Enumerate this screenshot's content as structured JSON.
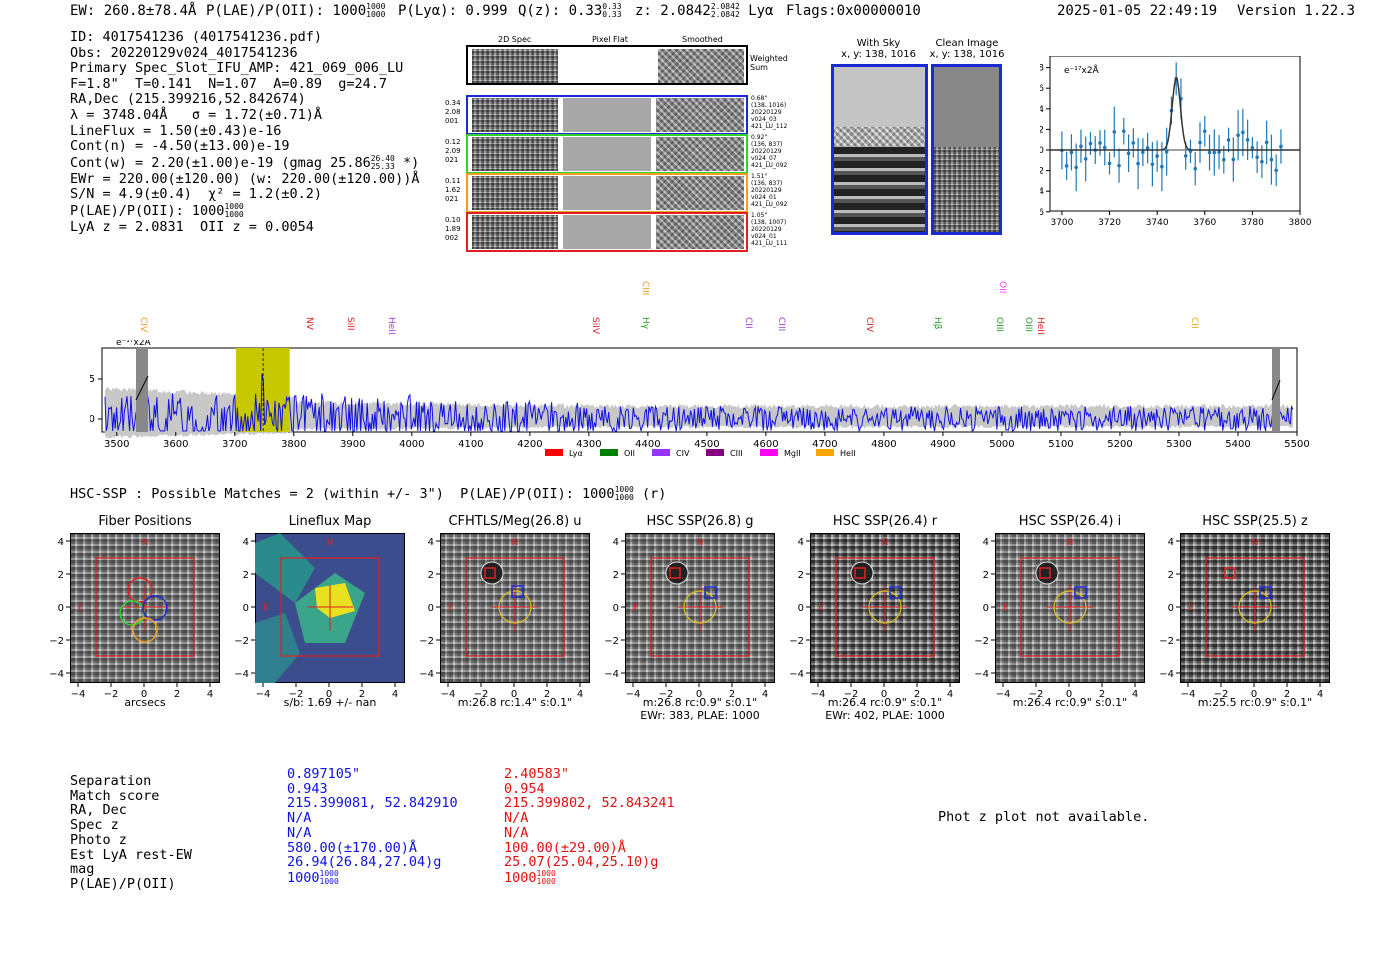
{
  "header": {
    "ew": "EW: 260.8±78.4Å",
    "plae_label": "P(LAE)/P(OII): 1000",
    "plae_num": "1000",
    "plae_den": "1000",
    "plya": "P(Lyα): 0.999",
    "qz_label": "Q(z): 0.33",
    "qz_num": "0.33",
    "qz_den": "0.33",
    "z_label": "z: 2.0842",
    "z_num": "2.0842",
    "z_den": "2.0842",
    "line": "Lyα",
    "flags": "Flags:0x00000010",
    "timestamp": "2025-01-05 22:49:19",
    "version": "Version 1.22.3"
  },
  "info": {
    "l1": "ID: 4017541236 (4017541236.pdf)",
    "l2": "Obs: 20220129v024_4017541236",
    "l3": "Primary Spec_Slot_IFU_AMP: 421_069_006_LU",
    "l4": "F=1.8\"  T=0.141  N=1.07  A=0.89  g=24.7",
    "l5": "RA,Dec (215.399216,52.842674)",
    "l6": "λ = 3748.04Å   σ = 1.72(±0.71)Å",
    "l7": "LineFlux = 1.50(±0.43)e-16",
    "l8": "Cont(n) = -4.50(±13.00)e-19",
    "l9": "Cont(w) = 2.20(±1.00)e-19 (gmag 25.86",
    "l9_num": "26.40",
    "l9_den": "25.33",
    "l9_end": " *)",
    "l10": "EWr = 220.00(±120.00) (w: 220.00(±120.00))Å",
    "l11": "S/N = 4.9(±0.4)  χ² = 1.2(±0.2)",
    "l12": "P(LAE)/P(OII): 1000",
    "l12_num": "1000",
    "l12_den": "1000",
    "l13": "LyA z = 2.0831  OII z = 0.0054"
  },
  "cutouts": {
    "titles": [
      "2D Spec",
      "Pixel Flat",
      "Smoothed"
    ],
    "weighted": "Weighted Sum",
    "rows": [
      {
        "left": [
          "0.34",
          "2.08",
          "001"
        ],
        "right": [
          "0.68\"",
          "(138, 1016)",
          "20220129",
          "v024_03",
          "421_LU_112"
        ],
        "color": "#1a2bd6"
      },
      {
        "left": [
          "0.12",
          "2.09",
          "021"
        ],
        "right": [
          "0.92\"",
          "(136, 837)",
          "20220129",
          "v024_07",
          "421_LU_092"
        ],
        "color": "#2fd22f"
      },
      {
        "left": [
          "0.11",
          "1.62",
          "021"
        ],
        "right": [
          "1.51\"",
          "(136, 837)",
          "20220129",
          "v024_01",
          "421_LU_092"
        ],
        "color": "#f0a020"
      },
      {
        "left": [
          "0.10",
          "1.89",
          "002"
        ],
        "right": [
          "1.05\"",
          "(138, 1007)",
          "20220129",
          "v024_01",
          "421_LU_111"
        ],
        "color": "#e02020"
      }
    ]
  },
  "sky": {
    "with_sky_title": "With Sky",
    "with_sky_sub": "x, y: 138, 1016",
    "clean_title": "Clean Image",
    "clean_sub": "x, y: 138, 1016"
  },
  "zoom_plot": {
    "unit": "e⁻¹⁷x2Å",
    "xticks": [
      "3700",
      "3720",
      "3740",
      "3760",
      "3780",
      "3800"
    ],
    "yticks": [
      "8",
      "6",
      "4",
      "2",
      "0",
      "−2",
      "−4",
      "−6"
    ]
  },
  "full_spec": {
    "unit": "e⁻¹⁷x2Å",
    "xticks": [
      "3500",
      "3600",
      "3700",
      "3800",
      "3900",
      "4000",
      "4100",
      "4200",
      "4300",
      "4400",
      "4500",
      "4600",
      "4700",
      "4800",
      "4900",
      "5000",
      "5100",
      "5200",
      "5300",
      "5400",
      "5500"
    ],
    "yticks": [
      "5",
      "0"
    ],
    "lines": [
      {
        "label": "CIV",
        "color": "#f0a020",
        "wave": 3545
      },
      {
        "label": "NV",
        "color": "#e02020",
        "wave": 3825
      },
      {
        "label": "SiII",
        "color": "#e02020",
        "wave": 3895
      },
      {
        "label": "HeII",
        "color": "#a040e0",
        "wave": 3965
      },
      {
        "label": "SiIV",
        "color": "#e02020",
        "wave": 4310
      },
      {
        "label": "CIII",
        "color": "#f0a020",
        "wave": 4395
      },
      {
        "label": "Hγ",
        "color": "#2a9a2a",
        "wave": 4395
      },
      {
        "label": "CII",
        "color": "#a040e0",
        "wave": 4570
      },
      {
        "label": "CIII",
        "color": "#a040e0",
        "wave": 4625
      },
      {
        "label": "CIV",
        "color": "#e02020",
        "wave": 4775
      },
      {
        "label": "Hβ",
        "color": "#2a9a2a",
        "wave": 4890
      },
      {
        "label": "OII",
        "color": "#ff40ff",
        "wave": 5000
      },
      {
        "label": "OIII",
        "color": "#2a9a2a",
        "wave": 4995
      },
      {
        "label": "OIII",
        "color": "#2a9a2a",
        "wave": 5045
      },
      {
        "label": "HeII",
        "color": "#e02020",
        "wave": 5065
      },
      {
        "label": "CII",
        "color": "#f0a020",
        "wave": 5325
      }
    ],
    "legend": [
      {
        "label": "Lyα",
        "color": "#ff0000"
      },
      {
        "label": "OII",
        "color": "#008000"
      },
      {
        "label": "CIV",
        "color": "#9933ff"
      },
      {
        "label": "CIII",
        "color": "#800080"
      },
      {
        "label": "MgII",
        "color": "#ff00ff"
      },
      {
        "label": "HeII",
        "color": "#ffa500"
      }
    ]
  },
  "hsc": {
    "title": "HSC-SSP : Possible Matches = 2 (within +/- 3\")  P(LAE)/P(OII): 1000",
    "num": "1000",
    "den": "1000",
    "suffix": "(r)",
    "panels": [
      {
        "title": "Fiber Positions",
        "cap1": "arcsecs",
        "cap2": ""
      },
      {
        "title": "Lineflux Map",
        "cap1": "s/b: 1.69 +/- nan",
        "cap2": ""
      },
      {
        "title": "CFHTLS/Meg(26.8) u",
        "cap1": "m:26.8 rc:1.4\"  s:0.1\"",
        "cap2": ""
      },
      {
        "title": "HSC SSP(26.8) g",
        "cap1": "m:26.8 rc:0.9\"  s:0.1\"",
        "cap2": "EWr: 383, PLAE: 1000"
      },
      {
        "title": "HSC SSP(26.4) r",
        "cap1": "m:26.4 rc:0.9\"  s:0.1\"",
        "cap2": "EWr: 402, PLAE: 1000"
      },
      {
        "title": "HSC SSP(26.4) i",
        "cap1": "m:26.4 rc:0.9\"  s:0.1\"",
        "cap2": ""
      },
      {
        "title": "HSC SSP(25.5) z",
        "cap1": "m:25.5 rc:0.9\"  s:0.1\"",
        "cap2": ""
      }
    ],
    "ticks": [
      "−4",
      "−2",
      "0",
      "2",
      "4"
    ],
    "ticks_y": [
      "4",
      "2",
      "0",
      "−2",
      "−4"
    ],
    "n": "N",
    "e": "E"
  },
  "table": {
    "labels": [
      "Separation",
      "Match score",
      "RA, Dec",
      "Spec z",
      "Photo z",
      "Est LyA rest-EW",
      "mag",
      "P(LAE)/P(OII)"
    ],
    "col1": [
      "0.897105\"",
      "0.943",
      "215.399081, 52.842910",
      "N/A",
      "N/A",
      "580.00(±170.00)Å",
      "26.94(26.84,27.04)g",
      "1000"
    ],
    "col1_frac": [
      "1000",
      "1000"
    ],
    "col2": [
      "2.40583\"",
      "0.954",
      "215.399802, 52.843241",
      "N/A",
      "N/A",
      "100.00(±29.00)Å",
      "25.07(25.04,25.10)g",
      "1000"
    ],
    "col2_frac": [
      "1000",
      "1000"
    ],
    "photz_msg": "Phot z plot not available."
  },
  "colors": {
    "blue": "#1010e0",
    "red": "#e01010"
  }
}
